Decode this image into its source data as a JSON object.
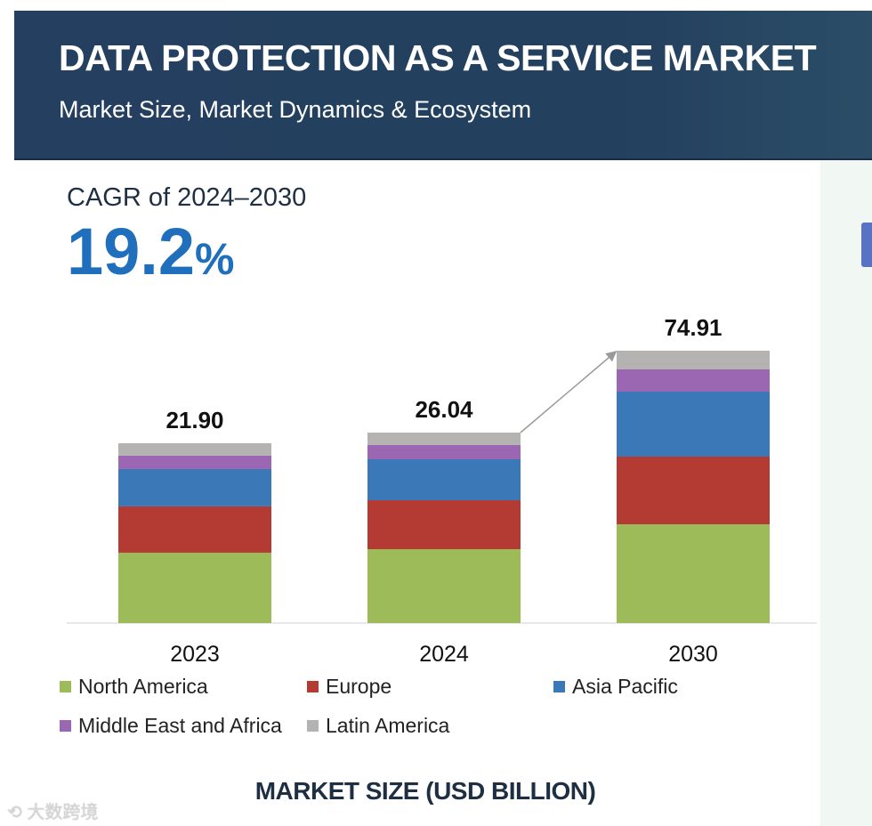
{
  "header": {
    "title": "DATA PROTECTION AS A SERVICE MARKET",
    "subtitle": "Market Size, Market Dynamics & Ecosystem"
  },
  "cagr": {
    "label": "CAGR of 2024–2030",
    "value": "19.2",
    "unit": "%"
  },
  "chart_data": {
    "type": "bar",
    "stacked": true,
    "title": "MARKET SIZE (USD BILLION)",
    "categories": [
      "2023",
      "2024",
      "2030"
    ],
    "totals": [
      21.9,
      26.04,
      74.91
    ],
    "total_labels": [
      "21.90",
      "26.04",
      "74.91"
    ],
    "series": [
      {
        "name": "North America",
        "color": "#9dbb59",
        "values": [
          8.57,
          10.1,
          27.17
        ]
      },
      {
        "name": "Europe",
        "color": "#b43b34",
        "values": [
          5.64,
          6.69,
          18.61
        ]
      },
      {
        "name": "Asia Pacific",
        "color": "#3b78b8",
        "values": [
          4.55,
          5.6,
          17.87
        ]
      },
      {
        "name": "Middle East and Africa",
        "color": "#9b67b2",
        "values": [
          1.63,
          1.95,
          6.12
        ]
      },
      {
        "name": "Latin America",
        "color": "#b5b2b2",
        "values": [
          1.52,
          1.7,
          5.14
        ]
      }
    ],
    "xlabel": "MARKET SIZE (USD BILLION)",
    "ylabel": "",
    "grid": false,
    "legend_position": "bottom"
  },
  "watermark": "大数跨境"
}
